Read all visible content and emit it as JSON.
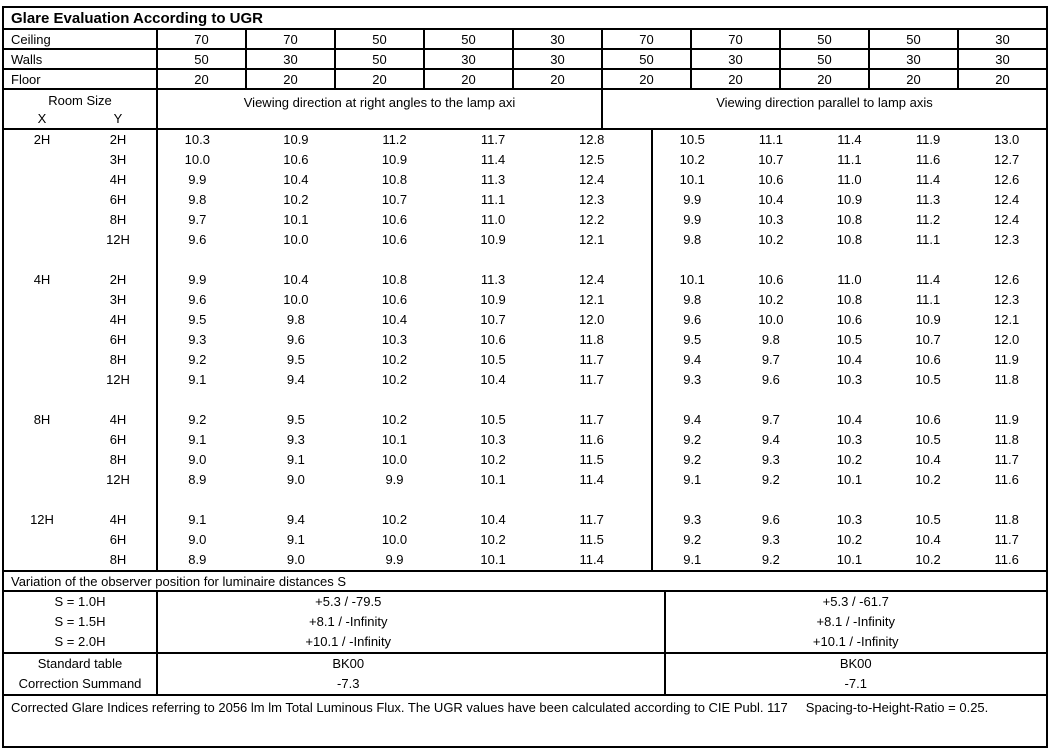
{
  "title": "Glare Evaluation According to UGR",
  "colors": {
    "border": "#000000",
    "background": "#ffffff",
    "text": "#000000"
  },
  "surface_rows": [
    {
      "label": "Ceiling",
      "values": [
        "70",
        "70",
        "50",
        "50",
        "30",
        "70",
        "70",
        "50",
        "50",
        "30"
      ]
    },
    {
      "label": "Walls",
      "values": [
        "50",
        "30",
        "50",
        "30",
        "30",
        "50",
        "30",
        "50",
        "30",
        "30"
      ]
    },
    {
      "label": "Floor",
      "values": [
        "20",
        "20",
        "20",
        "20",
        "20",
        "20",
        "20",
        "20",
        "20",
        "20"
      ]
    }
  ],
  "header": {
    "room_size": "Room Size",
    "x": "X",
    "y": "Y",
    "left_group": "Viewing direction at right angles to the lamp axi",
    "right_group": "Viewing direction parallel to lamp axis"
  },
  "body_rows": [
    {
      "x": "2H",
      "y": "2H",
      "v": [
        "10.3",
        "10.9",
        "11.2",
        "11.7",
        "12.8",
        "10.5",
        "11.1",
        "11.4",
        "11.9",
        "13.0"
      ]
    },
    {
      "x": "",
      "y": "3H",
      "v": [
        "10.0",
        "10.6",
        "10.9",
        "11.4",
        "12.5",
        "10.2",
        "10.7",
        "11.1",
        "11.6",
        "12.7"
      ]
    },
    {
      "x": "",
      "y": "4H",
      "v": [
        "9.9",
        "10.4",
        "10.8",
        "11.3",
        "12.4",
        "10.1",
        "10.6",
        "11.0",
        "11.4",
        "12.6"
      ]
    },
    {
      "x": "",
      "y": "6H",
      "v": [
        "9.8",
        "10.2",
        "10.7",
        "11.1",
        "12.3",
        "9.9",
        "10.4",
        "10.9",
        "11.3",
        "12.4"
      ]
    },
    {
      "x": "",
      "y": "8H",
      "v": [
        "9.7",
        "10.1",
        "10.6",
        "11.0",
        "12.2",
        "9.9",
        "10.3",
        "10.8",
        "11.2",
        "12.4"
      ]
    },
    {
      "x": "",
      "y": "12H",
      "v": [
        "9.6",
        "10.0",
        "10.6",
        "10.9",
        "12.1",
        "9.8",
        "10.2",
        "10.8",
        "11.1",
        "12.3"
      ]
    },
    {
      "spacer": true
    },
    {
      "x": "4H",
      "y": "2H",
      "v": [
        "9.9",
        "10.4",
        "10.8",
        "11.3",
        "12.4",
        "10.1",
        "10.6",
        "11.0",
        "11.4",
        "12.6"
      ]
    },
    {
      "x": "",
      "y": "3H",
      "v": [
        "9.6",
        "10.0",
        "10.6",
        "10.9",
        "12.1",
        "9.8",
        "10.2",
        "10.8",
        "11.1",
        "12.3"
      ]
    },
    {
      "x": "",
      "y": "4H",
      "v": [
        "9.5",
        "9.8",
        "10.4",
        "10.7",
        "12.0",
        "9.6",
        "10.0",
        "10.6",
        "10.9",
        "12.1"
      ]
    },
    {
      "x": "",
      "y": "6H",
      "v": [
        "9.3",
        "9.6",
        "10.3",
        "10.6",
        "11.8",
        "9.5",
        "9.8",
        "10.5",
        "10.7",
        "12.0"
      ]
    },
    {
      "x": "",
      "y": "8H",
      "v": [
        "9.2",
        "9.5",
        "10.2",
        "10.5",
        "11.7",
        "9.4",
        "9.7",
        "10.4",
        "10.6",
        "11.9"
      ]
    },
    {
      "x": "",
      "y": "12H",
      "v": [
        "9.1",
        "9.4",
        "10.2",
        "10.4",
        "11.7",
        "9.3",
        "9.6",
        "10.3",
        "10.5",
        "11.8"
      ]
    },
    {
      "spacer": true
    },
    {
      "x": "8H",
      "y": "4H",
      "v": [
        "9.2",
        "9.5",
        "10.2",
        "10.5",
        "11.7",
        "9.4",
        "9.7",
        "10.4",
        "10.6",
        "11.9"
      ]
    },
    {
      "x": "",
      "y": "6H",
      "v": [
        "9.1",
        "9.3",
        "10.1",
        "10.3",
        "11.6",
        "9.2",
        "9.4",
        "10.3",
        "10.5",
        "11.8"
      ]
    },
    {
      "x": "",
      "y": "8H",
      "v": [
        "9.0",
        "9.1",
        "10.0",
        "10.2",
        "11.5",
        "9.2",
        "9.3",
        "10.2",
        "10.4",
        "11.7"
      ]
    },
    {
      "x": "",
      "y": "12H",
      "v": [
        "8.9",
        "9.0",
        "9.9",
        "10.1",
        "11.4",
        "9.1",
        "9.2",
        "10.1",
        "10.2",
        "11.6"
      ]
    },
    {
      "spacer": true
    },
    {
      "x": "12H",
      "y": "4H",
      "v": [
        "9.1",
        "9.4",
        "10.2",
        "10.4",
        "11.7",
        "9.3",
        "9.6",
        "10.3",
        "10.5",
        "11.8"
      ]
    },
    {
      "x": "",
      "y": "6H",
      "v": [
        "9.0",
        "9.1",
        "10.0",
        "10.2",
        "11.5",
        "9.2",
        "9.3",
        "10.2",
        "10.4",
        "11.7"
      ]
    },
    {
      "x": "",
      "y": "8H",
      "v": [
        "8.9",
        "9.0",
        "9.9",
        "10.1",
        "11.4",
        "9.1",
        "9.2",
        "10.1",
        "10.2",
        "11.6"
      ]
    }
  ],
  "variation_label": "Variation of the observer position for luminaire distances S",
  "s_rows": [
    {
      "label": "S = 1.0H",
      "left": "+5.3 / -79.5",
      "right": "+5.3 / -61.7"
    },
    {
      "label": "S = 1.5H",
      "left": "+8.1 / -Infinity",
      "right": "+8.1 / -Infinity"
    },
    {
      "label": "S = 2.0H",
      "left": "+10.1 / -Infinity",
      "right": "+10.1 / -Infinity"
    }
  ],
  "summary_rows": [
    {
      "label": "Standard table",
      "left": "BK00",
      "right": "BK00"
    },
    {
      "label": "Correction Summand",
      "left": "-7.3",
      "right": "-7.1"
    }
  ],
  "footer": {
    "text": "Corrected Glare Indices referring to 2056 lm lm Total Luminous Flux. The UGR values have been calculated according to CIE Publ. 117",
    "ratio": "Spacing-to-Height-Ratio = 0.25."
  }
}
